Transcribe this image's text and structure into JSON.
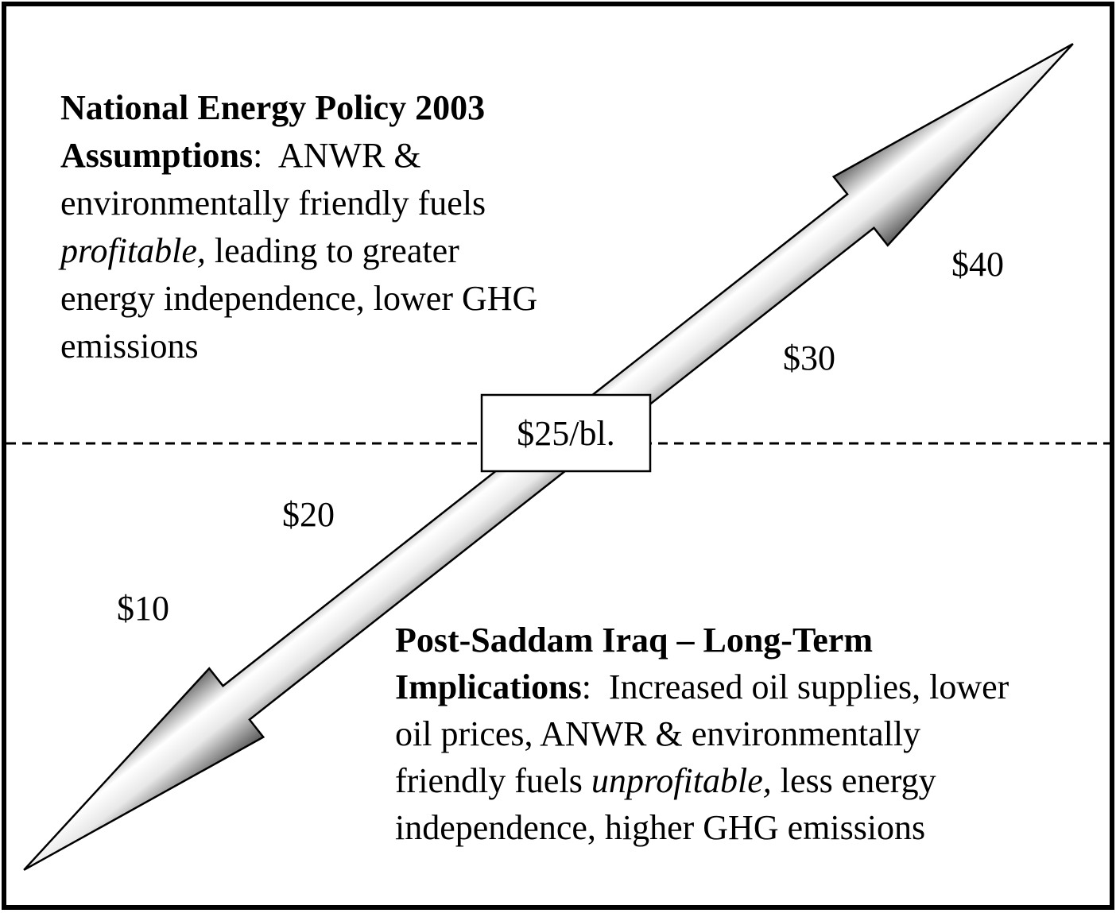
{
  "policy_block": {
    "lines": [
      [
        {
          "text": "National Energy Policy 2003",
          "bold": true
        }
      ],
      [
        {
          "text": "Assumptions",
          "bold": true
        },
        {
          "text": ":  ANWR &"
        }
      ],
      [
        {
          "text": "environmentally friendly fuels"
        }
      ],
      [
        {
          "text": "profitable,",
          "italic": true
        },
        {
          "text": " leading to greater"
        }
      ],
      [
        {
          "text": "energy independence, lower GHG"
        }
      ],
      [
        {
          "text": "emissions"
        }
      ]
    ]
  },
  "iraq_block": {
    "lines": [
      [
        {
          "text": "Post-Saddam Iraq – Long-Term",
          "bold": true
        }
      ],
      [
        {
          "text": "Implications",
          "bold": true
        },
        {
          "text": ":  Increased oil supplies, lower"
        }
      ],
      [
        {
          "text": "oil prices, ANWR & environmentally"
        }
      ],
      [
        {
          "text": "friendly fuels "
        },
        {
          "text": "unprofitable,",
          "italic": true
        },
        {
          "text": " less energy"
        }
      ],
      [
        {
          "text": "independence, higher GHG emissions"
        }
      ]
    ]
  },
  "price_labels": [
    "$40",
    "$30",
    "$20",
    "$10"
  ],
  "center_label": "$25/bl."
}
